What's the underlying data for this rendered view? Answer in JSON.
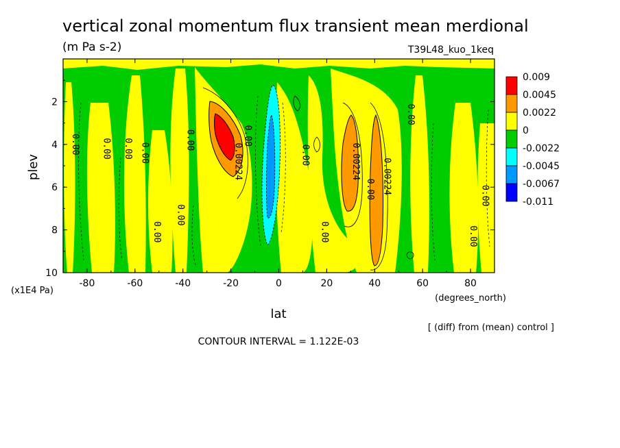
{
  "chart_data": {
    "type": "heatmap",
    "title": "vertical zonal momentum flux transient mean merdional",
    "subtitle": "(m Pa s-2)",
    "run_label": "T39L48_kuo_1keq",
    "xlabel": "lat",
    "x_units": "(degrees_north)",
    "ylabel": "plev",
    "y_units": "(x1E4 Pa)",
    "xlim": [
      -90,
      90
    ],
    "ylim": [
      10,
      0
    ],
    "x_ticks": [
      -80,
      -60,
      -40,
      -20,
      0,
      20,
      40,
      60,
      80
    ],
    "y_ticks": [
      2,
      4,
      6,
      8,
      10
    ],
    "levels": [
      "0.009",
      "0.0045",
      "0.0022",
      "0",
      "-0.0022",
      "-0.0045",
      "-0.0067",
      "-0.011"
    ],
    "legend_colors": [
      "#ff0000",
      "#ff9900",
      "#ffff00",
      "#00cc00",
      "#00ffff",
      "#0099ff",
      "#0000ff"
    ],
    "legend_placement": "right",
    "contour_labels": [
      {
        "text": "0.00",
        "lat": -86,
        "plev": 4.0
      },
      {
        "text": "0.00",
        "lat": -73,
        "plev": 4.2
      },
      {
        "text": "0.00",
        "lat": -64,
        "plev": 4.2
      },
      {
        "text": "0.00",
        "lat": -57,
        "plev": 4.4
      },
      {
        "text": "0.00",
        "lat": -52,
        "plev": 8.1
      },
      {
        "text": "0.00",
        "lat": -42,
        "plev": 7.3
      },
      {
        "text": "0.00",
        "lat": -38,
        "plev": 3.8
      },
      {
        "text": "0.00224",
        "lat": -18,
        "plev": 4.8
      },
      {
        "text": "0.00",
        "lat": -14,
        "plev": 3.6
      },
      {
        "text": "0.00",
        "lat": 10,
        "plev": 4.5
      },
      {
        "text": "0.00",
        "lat": 18,
        "plev": 8.1
      },
      {
        "text": "0.00224",
        "lat": 31,
        "plev": 4.8
      },
      {
        "text": "0.00",
        "lat": 37,
        "plev": 6.1
      },
      {
        "text": "0.00224",
        "lat": 44,
        "plev": 5.5
      },
      {
        "text": "0.00",
        "lat": 54,
        "plev": 2.6
      },
      {
        "text": "0.00",
        "lat": 80,
        "plev": 8.3
      },
      {
        "text": "0.00",
        "lat": 85,
        "plev": 6.4
      }
    ],
    "grid": false,
    "footer_note": "[ (diff) from (mean) control ]",
    "contour_interval": "CONTOUR INTERVAL = 1.122E-03"
  }
}
